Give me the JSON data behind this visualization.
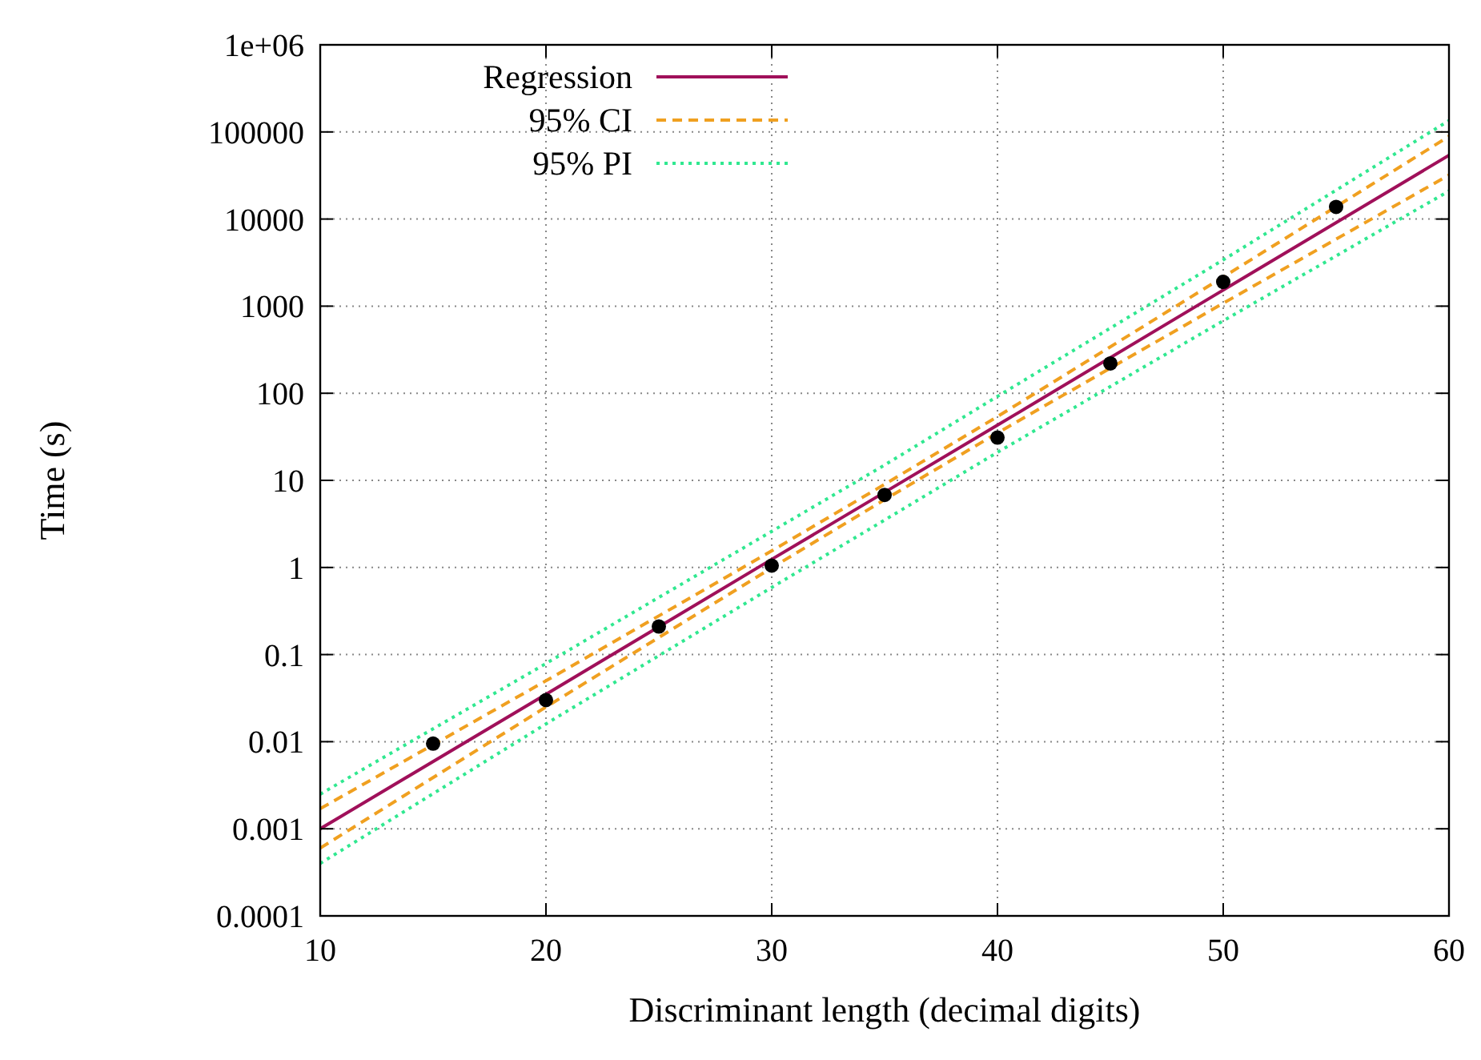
{
  "chart_data": {
    "type": "line",
    "xlabel": "Discriminant length (decimal digits)",
    "ylabel": "Time (s)",
    "xlim": [
      10,
      60
    ],
    "xticks": [
      10,
      20,
      30,
      40,
      50,
      60
    ],
    "ylim": [
      0.0001,
      1000000
    ],
    "yticks": [
      0.0001,
      0.001,
      0.01,
      0.1,
      1,
      10,
      100,
      1000,
      10000,
      100000,
      {
        "value": 1000000,
        "label": "1e+06"
      }
    ],
    "log": "y",
    "grid": true,
    "legend": "top left",
    "series": [
      {
        "name": "Regression",
        "color": "#a0105a",
        "line_style": "solid",
        "marker": "none",
        "x": [
          10,
          20,
          30,
          35,
          40,
          50,
          60
        ],
        "values": [
          0.001,
          0.035,
          1.24,
          7.3,
          43,
          1530,
          54000
        ]
      },
      {
        "name": "95% CI",
        "color": "#f0a020",
        "line_style": "dashed",
        "marker": "none",
        "x": [
          10,
          20,
          30,
          35,
          40,
          50,
          60
        ],
        "values": [
          0.0017,
          0.05,
          1.55,
          9,
          54,
          2160,
          89000
        ]
      },
      {
        "color": "#f0a020",
        "line_style": "dashed",
        "marker": "none",
        "x": [
          10,
          20,
          30,
          35,
          40,
          50,
          60
        ],
        "values": [
          0.0006,
          0.025,
          0.99,
          6,
          35,
          1080,
          32000
        ]
      },
      {
        "name": "95% PI",
        "color": "#30e890",
        "line_style": "dotted",
        "marker": "none",
        "x": [
          10,
          20,
          30,
          35,
          40,
          50,
          60
        ],
        "values": [
          0.0025,
          0.079,
          2.6,
          15,
          92,
          3400,
          135000
        ]
      },
      {
        "color": "#30e890",
        "line_style": "dotted",
        "marker": "none",
        "x": [
          10,
          20,
          30,
          35,
          40,
          50,
          60
        ],
        "values": [
          0.0004,
          0.016,
          0.59,
          3.5,
          21,
          680,
          21000
        ]
      },
      {
        "type": "scatter",
        "color": "#000000",
        "marker": "circle",
        "x": [
          15,
          20,
          25,
          30,
          35,
          40,
          45,
          50,
          55
        ],
        "values": [
          0.0095,
          0.03,
          0.21,
          1.05,
          6.8,
          31,
          220,
          1900,
          13800
        ]
      }
    ]
  }
}
